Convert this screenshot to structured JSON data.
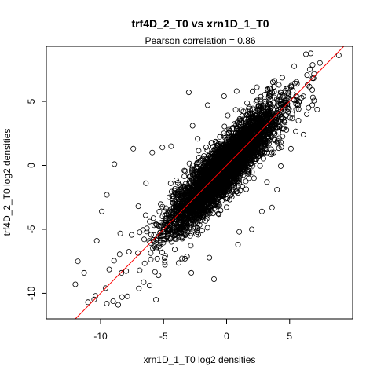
{
  "chart_data": {
    "type": "scatter",
    "title": "trf4D_2_T0 vs xrn1D_1_T0",
    "subtitle_prefix": "Pearson correlation =  ",
    "pearson_correlation": "0.86",
    "xlabel": "xrn1D_1_T0 log2 densities",
    "ylabel": "trf4D_2_T0 log2 densities",
    "xlim": [
      -14.3,
      10.0
    ],
    "ylim": [
      -12.0,
      9.3
    ],
    "x_ticks": [
      -10,
      -5,
      0,
      5
    ],
    "y_ticks": [
      -10,
      -5,
      0,
      5
    ],
    "x_tick_labels": [
      "-10",
      "-5",
      "0",
      "5"
    ],
    "y_tick_labels": [
      "-10",
      "-5",
      "0",
      "5"
    ],
    "grid": false,
    "legend": "none",
    "point_marker": "open circle",
    "point_color": "#000000",
    "approx_point_count": 5000,
    "regression_line": {
      "slope": 1.0,
      "intercept": 0.0,
      "color": "#ff0000"
    },
    "outlier_points": [
      {
        "x": 8.9,
        "y": 8.6
      },
      {
        "x": 7.4,
        "y": 8.0
      },
      {
        "x": 6.9,
        "y": 6.8
      },
      {
        "x": 6.6,
        "y": 7.5
      },
      {
        "x": 6.8,
        "y": 5.9
      },
      {
        "x": 6.8,
        "y": 4.7
      },
      {
        "x": 6.5,
        "y": 4.5
      },
      {
        "x": 5.7,
        "y": 3.5
      },
      {
        "x": 5.2,
        "y": 4.0
      },
      {
        "x": 3.8,
        "y": 6.6
      },
      {
        "x": 3.4,
        "y": 6.0
      },
      {
        "x": 2.4,
        "y": 6.1
      },
      {
        "x": 0.8,
        "y": 5.8
      },
      {
        "x": -0.2,
        "y": 5.4
      },
      {
        "x": -2.7,
        "y": 3.1
      },
      {
        "x": -4.4,
        "y": 1.5
      },
      {
        "x": -5.1,
        "y": 1.4
      },
      {
        "x": -5.9,
        "y": 1.0
      },
      {
        "x": -7.4,
        "y": 1.3
      },
      {
        "x": -8.9,
        "y": 0.1
      },
      {
        "x": -9.5,
        "y": -2.3
      },
      {
        "x": -9.9,
        "y": -3.6
      },
      {
        "x": -7.0,
        "y": -3.2
      },
      {
        "x": -6.4,
        "y": -1.4
      },
      {
        "x": -10.3,
        "y": -5.9
      },
      {
        "x": -11.8,
        "y": -7.5
      },
      {
        "x": -11.3,
        "y": -8.4
      },
      {
        "x": -12.0,
        "y": -9.3
      },
      {
        "x": -11.0,
        "y": -10.7
      },
      {
        "x": -10.4,
        "y": -10.2
      },
      {
        "x": -9.6,
        "y": -9.6
      },
      {
        "x": -9.5,
        "y": -10.8
      },
      {
        "x": -8.6,
        "y": -10.9
      },
      {
        "x": -8.3,
        "y": -10.3
      },
      {
        "x": -5.6,
        "y": -10.5
      },
      {
        "x": -6.1,
        "y": -9.4
      },
      {
        "x": -6.9,
        "y": -8.2
      },
      {
        "x": -5.4,
        "y": -8.6
      },
      {
        "x": -3.3,
        "y": -7.3
      },
      {
        "x": -2.8,
        "y": -8.4
      },
      {
        "x": -1.0,
        "y": -8.9
      },
      {
        "x": 0.9,
        "y": -6.2
      },
      {
        "x": 2.0,
        "y": -5.0
      },
      {
        "x": 3.6,
        "y": -3.3
      },
      {
        "x": 4.0,
        "y": -1.9
      },
      {
        "x": 3.2,
        "y": -1.3
      },
      {
        "x": 5.1,
        "y": 1.3
      },
      {
        "x": 6.1,
        "y": 2.4
      },
      {
        "x": -3.0,
        "y": 5.7
      },
      {
        "x": -1.5,
        "y": 4.7
      },
      {
        "x": 2.8,
        "y": -3.6
      },
      {
        "x": 1.0,
        "y": -5.2
      }
    ]
  }
}
